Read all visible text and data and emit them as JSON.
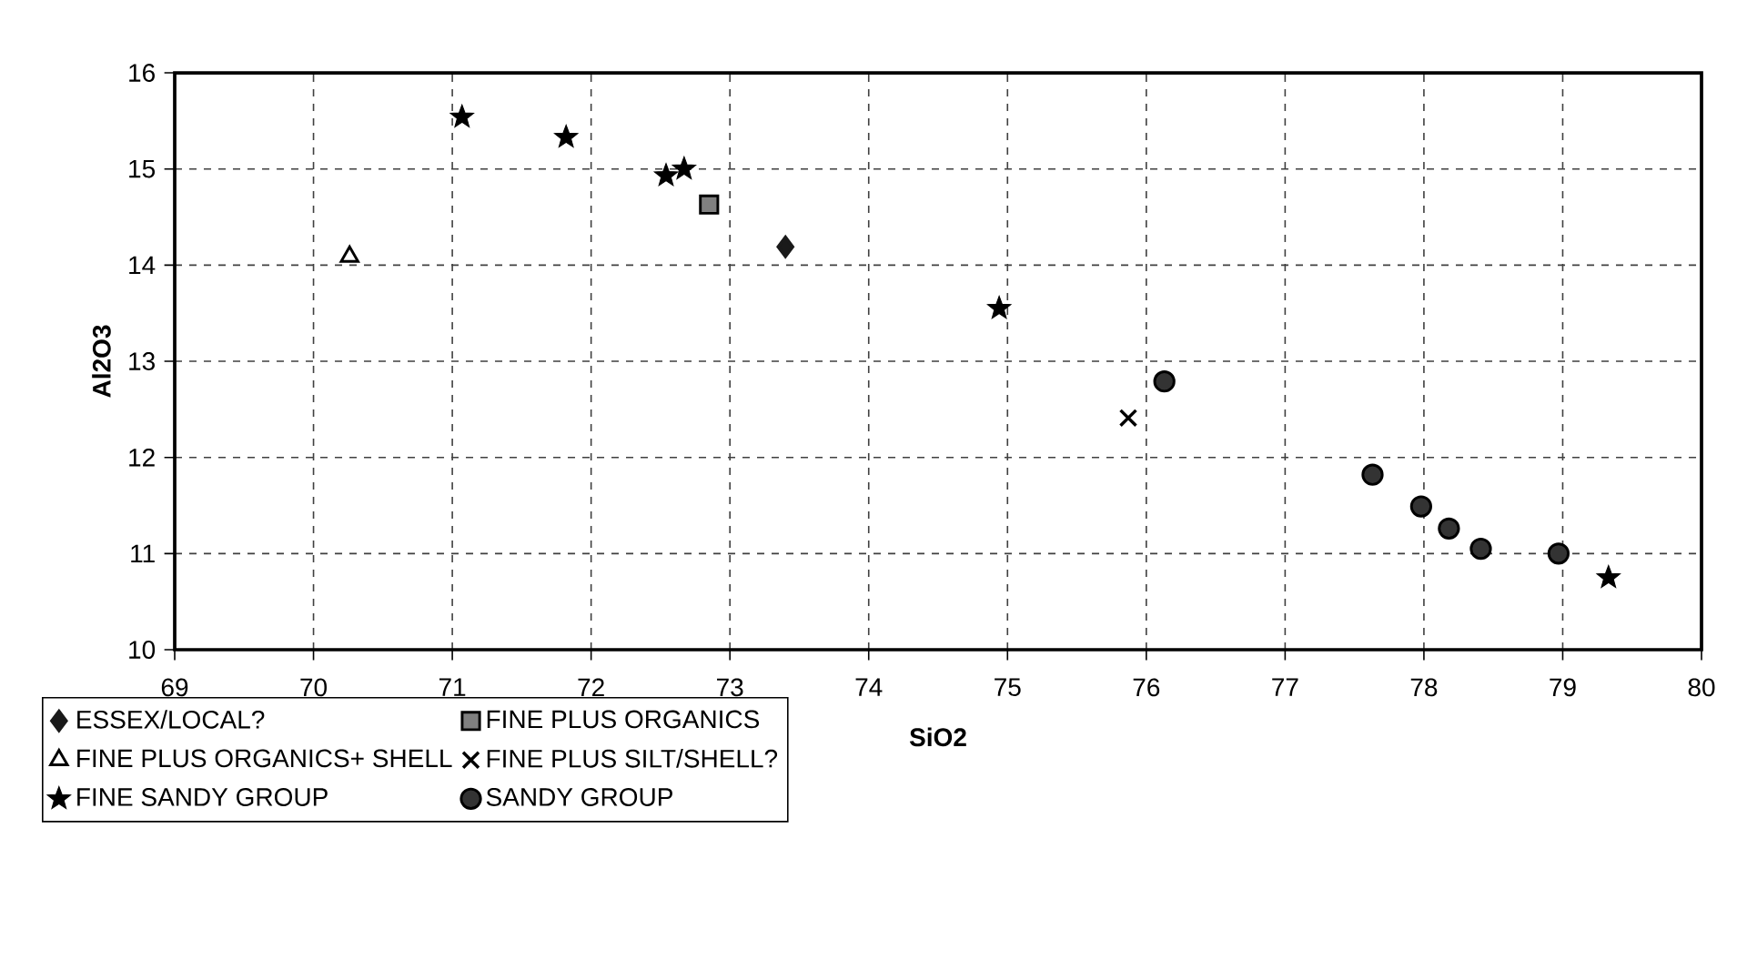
{
  "chart_data": {
    "type": "scatter",
    "xlabel": "SiO2",
    "ylabel": "Al2O3",
    "xlim": [
      69,
      80
    ],
    "ylim": [
      10,
      16
    ],
    "xticks": [
      69,
      70,
      71,
      72,
      73,
      74,
      75,
      76,
      77,
      78,
      79,
      80
    ],
    "yticks": [
      10,
      11,
      12,
      13,
      14,
      15,
      16
    ],
    "grid": true,
    "legend": "bottom",
    "series": [
      {
        "name": "ESSEX/LOCAL?",
        "color": "#1a1a1a",
        "marker": "diamond",
        "x": [
          73.4
        ],
        "values": [
          14.19
        ]
      },
      {
        "name": "FINE PLUS ORGANICS",
        "color": "#808080",
        "marker": "square",
        "x": [
          72.85
        ],
        "values": [
          14.63
        ]
      },
      {
        "name": "FINE PLUS ORGANICS+ SHELL",
        "color": "#ffffff",
        "marker": "triangle",
        "x": [
          70.26
        ],
        "values": [
          14.09
        ]
      },
      {
        "name": "FINE PLUS SILT/SHELL?",
        "color": "#000000",
        "marker": "cross",
        "x": [
          75.87
        ],
        "values": [
          12.41
        ]
      },
      {
        "name": "FINE SANDY GROUP",
        "color": "#000000",
        "marker": "star",
        "x": [
          71.07,
          71.82,
          72.54,
          72.67,
          74.94,
          79.33
        ],
        "values": [
          15.54,
          15.33,
          14.93,
          15.0,
          13.55,
          10.75
        ]
      },
      {
        "name": "SANDY GROUP",
        "color": "#333333",
        "marker": "circle",
        "x": [
          76.13,
          77.63,
          77.98,
          78.18,
          78.41,
          78.97
        ],
        "values": [
          12.79,
          11.82,
          11.49,
          11.26,
          11.05,
          11.0
        ]
      }
    ]
  }
}
